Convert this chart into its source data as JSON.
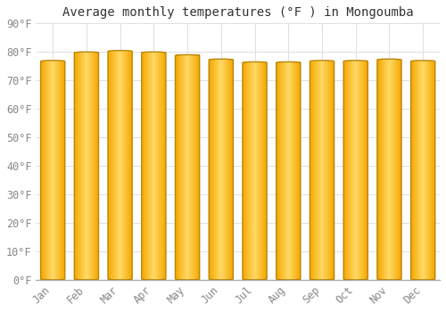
{
  "title": "Average monthly temperatures (°F ) in Mongoumba",
  "categories": [
    "Jan",
    "Feb",
    "Mar",
    "Apr",
    "May",
    "Jun",
    "Jul",
    "Aug",
    "Sep",
    "Oct",
    "Nov",
    "Dec"
  ],
  "values": [
    77,
    80,
    80.5,
    80,
    79,
    77.5,
    76.5,
    76.5,
    77,
    77,
    77.5,
    77
  ],
  "ylim": [
    0,
    90
  ],
  "yticks": [
    0,
    10,
    20,
    30,
    40,
    50,
    60,
    70,
    80,
    90
  ],
  "ytick_labels": [
    "0°F",
    "10°F",
    "20°F",
    "30°F",
    "40°F",
    "50°F",
    "60°F",
    "70°F",
    "80°F",
    "90°F"
  ],
  "bar_color_center": "#FFD966",
  "bar_color_edge": "#F5A800",
  "bar_border_color": "#B8860B",
  "background_color": "#ffffff",
  "plot_bg_color": "#ffffff",
  "grid_color": "#e0e0e0",
  "title_fontsize": 10,
  "tick_fontsize": 8.5,
  "font_family": "monospace",
  "title_color": "#333333",
  "tick_color": "#888888"
}
